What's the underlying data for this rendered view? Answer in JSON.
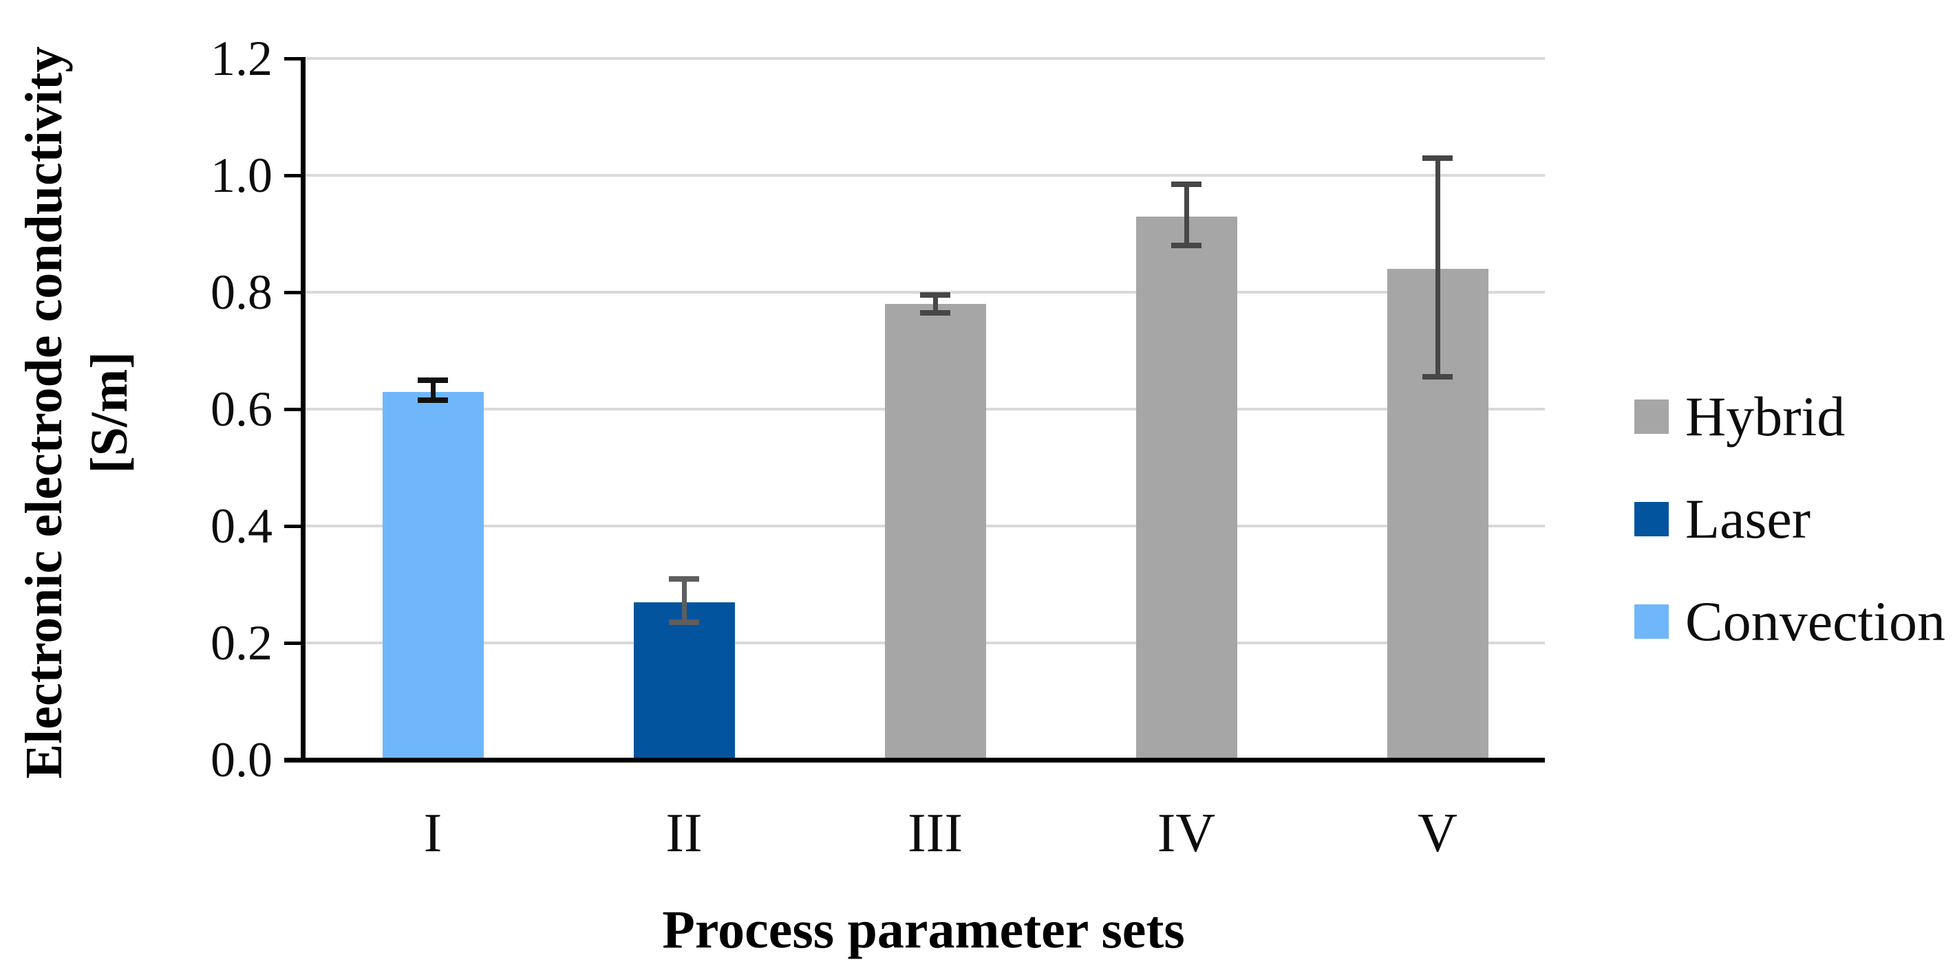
{
  "figure": {
    "background": "#ffffff",
    "gridline_color": "#D9D9D9",
    "axis_color": "#000000"
  },
  "chart_data": {
    "type": "bar",
    "title": "",
    "xlabel": "Process parameter sets",
    "ylabel": "Electronic electrode conductivity [S/m]",
    "ylabel_line1": "Electronic electrode conductivity",
    "ylabel_line2": "[S/m]",
    "ylim": [
      0.0,
      1.2
    ],
    "ytick_step": 0.2,
    "ytick_labels": [
      "0.0",
      "0.2",
      "0.4",
      "0.6",
      "0.8",
      "1.0",
      "1.2"
    ],
    "grid": "horizontal-major",
    "legend_position": "right-middle",
    "categories": [
      "I",
      "II",
      "III",
      "IV",
      "V"
    ],
    "bars": [
      {
        "category": "I",
        "series": "Convection",
        "value": 0.63,
        "err_plus": 0.02,
        "err_minus": 0.015,
        "color": "#6FB7FA",
        "error_color": "#111111"
      },
      {
        "category": "II",
        "series": "Laser",
        "value": 0.27,
        "err_plus": 0.04,
        "err_minus": 0.035,
        "color": "#03549F",
        "error_color": "#5E5E5E"
      },
      {
        "category": "III",
        "series": "Hybrid",
        "value": 0.78,
        "err_plus": 0.015,
        "err_minus": 0.015,
        "color": "#A6A6A6",
        "error_color": "#474747"
      },
      {
        "category": "IV",
        "series": "Hybrid",
        "value": 0.93,
        "err_plus": 0.055,
        "err_minus": 0.05,
        "color": "#A6A6A6",
        "error_color": "#474747"
      },
      {
        "category": "V",
        "series": "Hybrid",
        "value": 0.84,
        "err_plus": 0.19,
        "err_minus": 0.185,
        "color": "#A6A6A6",
        "error_color": "#474747"
      }
    ],
    "legend": [
      {
        "label": "Hybrid",
        "color": "#A6A6A6"
      },
      {
        "label": "Laser",
        "color": "#03549F"
      },
      {
        "label": "Convection",
        "color": "#6FB7FA"
      }
    ]
  }
}
